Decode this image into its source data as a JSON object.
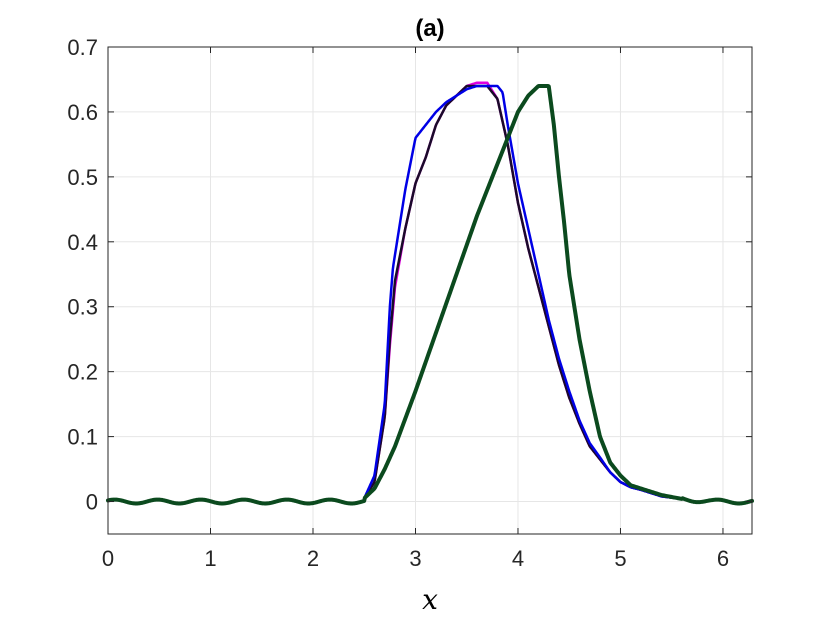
{
  "chart_data": {
    "type": "line",
    "title": "(a)",
    "xlabel": "x",
    "ylabel": "",
    "xlim": [
      0,
      6.2832
    ],
    "ylim": [
      -0.05,
      0.7
    ],
    "xticks": [
      0,
      1,
      2,
      3,
      4,
      5,
      6
    ],
    "xtick_labels": [
      "0",
      "1",
      "2",
      "3",
      "4",
      "5",
      "6"
    ],
    "yticks": [
      0,
      0.1,
      0.2,
      0.3,
      0.4,
      0.5,
      0.6,
      0.7
    ],
    "ytick_labels": [
      "0",
      "0.1",
      "0.2",
      "0.3",
      "0.4",
      "0.5",
      "0.6",
      "0.7"
    ],
    "grid": true,
    "legend": "none",
    "series": [
      {
        "color": "#e000e0",
        "width": 2.5,
        "x": [
          2.5,
          2.6,
          2.7,
          2.75,
          2.8,
          2.9,
          3.0,
          3.1,
          3.2,
          3.3,
          3.4,
          3.5,
          3.6,
          3.7,
          3.8,
          3.9,
          4.0,
          4.1,
          4.2,
          4.3,
          4.4,
          4.5,
          4.6,
          4.7,
          4.8,
          4.9,
          5.0,
          5.1,
          5.2,
          5.4,
          5.6
        ],
        "y": [
          0.005,
          0.03,
          0.13,
          0.24,
          0.33,
          0.42,
          0.49,
          0.53,
          0.58,
          0.61,
          0.625,
          0.64,
          0.645,
          0.645,
          0.62,
          0.55,
          0.46,
          0.39,
          0.33,
          0.27,
          0.21,
          0.16,
          0.12,
          0.085,
          0.065,
          0.045,
          0.03,
          0.022,
          0.018,
          0.008,
          0.004
        ]
      },
      {
        "color": "#1a0a2a",
        "width": 2.5,
        "x": [
          2.5,
          2.6,
          2.7,
          2.75,
          2.8,
          2.9,
          3.0,
          3.1,
          3.2,
          3.3,
          3.4,
          3.5,
          3.6,
          3.7,
          3.8,
          3.9,
          4.0,
          4.1,
          4.2,
          4.3,
          4.4,
          4.5,
          4.6,
          4.7,
          4.8,
          4.9,
          5.0,
          5.1,
          5.2,
          5.4,
          5.6
        ],
        "y": [
          0.005,
          0.03,
          0.13,
          0.25,
          0.34,
          0.42,
          0.49,
          0.53,
          0.58,
          0.61,
          0.625,
          0.64,
          0.64,
          0.64,
          0.62,
          0.55,
          0.46,
          0.39,
          0.33,
          0.27,
          0.21,
          0.16,
          0.12,
          0.085,
          0.065,
          0.045,
          0.03,
          0.022,
          0.018,
          0.008,
          0.004
        ]
      },
      {
        "color": "#0000e6",
        "width": 2.5,
        "x": [
          2.5,
          2.6,
          2.7,
          2.75,
          2.78,
          2.82,
          2.9,
          3.0,
          3.1,
          3.2,
          3.3,
          3.4,
          3.5,
          3.6,
          3.7,
          3.8,
          3.85,
          3.9,
          4.0,
          4.1,
          4.2,
          4.3,
          4.4,
          4.5,
          4.6,
          4.7,
          4.8,
          4.9,
          5.0,
          5.1,
          5.2,
          5.4,
          5.6
        ],
        "y": [
          0.005,
          0.04,
          0.15,
          0.3,
          0.36,
          0.4,
          0.48,
          0.56,
          0.58,
          0.6,
          0.615,
          0.625,
          0.635,
          0.64,
          0.64,
          0.64,
          0.63,
          0.58,
          0.49,
          0.42,
          0.35,
          0.28,
          0.22,
          0.17,
          0.125,
          0.09,
          0.068,
          0.045,
          0.03,
          0.022,
          0.018,
          0.008,
          0.004
        ]
      },
      {
        "color": "#0b4a1e",
        "width": 4,
        "x": [
          2.5,
          2.6,
          2.7,
          2.8,
          3.0,
          3.2,
          3.4,
          3.6,
          3.8,
          4.0,
          4.1,
          4.2,
          4.25,
          4.3,
          4.35,
          4.4,
          4.45,
          4.5,
          4.6,
          4.7,
          4.8,
          4.9,
          5.0,
          5.1,
          5.2,
          5.4,
          5.6
        ],
        "y": [
          0.005,
          0.02,
          0.05,
          0.085,
          0.17,
          0.26,
          0.35,
          0.44,
          0.52,
          0.6,
          0.625,
          0.64,
          0.64,
          0.64,
          0.58,
          0.5,
          0.43,
          0.35,
          0.25,
          0.17,
          0.1,
          0.06,
          0.04,
          0.025,
          0.02,
          0.01,
          0.004
        ]
      }
    ]
  }
}
